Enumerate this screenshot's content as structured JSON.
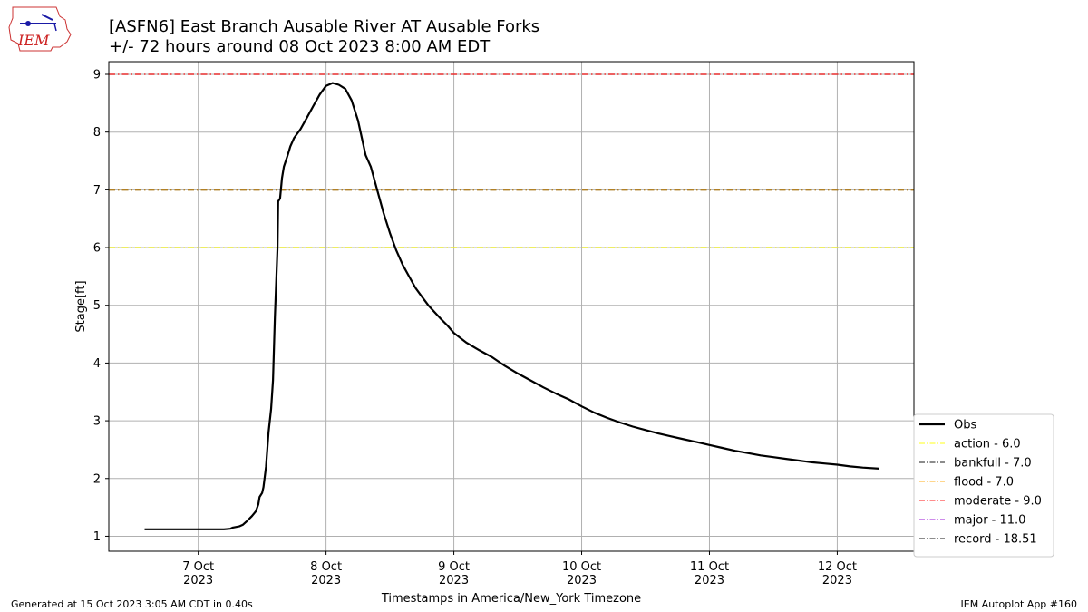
{
  "header": {
    "title": "[ASFN6] East Branch Ausable River  AT Ausable Forks",
    "subtitle": "+/- 72 hours around 08 Oct 2023 8:00 AM EDT",
    "logo_text": "IEM"
  },
  "footer": {
    "left": "Generated at 15 Oct 2023 3:05 AM CDT in 0.40s",
    "right": "IEM Autoplot App #160"
  },
  "chart_data": {
    "type": "line",
    "xlabel": "Timestamps in America/New_York Timezone",
    "ylabel": "Stage[ft]",
    "x_unit": "days since 2023-10-07 00:00 EDT",
    "xlim": [
      -0.7,
      5.6
    ],
    "ylim": [
      0.74,
      9.22
    ],
    "grid": true,
    "legend_position": "lower-right",
    "x_ticks": [
      {
        "value": 0,
        "line1": "7 Oct",
        "line2": "2023"
      },
      {
        "value": 1,
        "line1": "8 Oct",
        "line2": "2023"
      },
      {
        "value": 2,
        "line1": "9 Oct",
        "line2": "2023"
      },
      {
        "value": 3,
        "line1": "10 Oct",
        "line2": "2023"
      },
      {
        "value": 4,
        "line1": "11 Oct",
        "line2": "2023"
      },
      {
        "value": 5,
        "line1": "12 Oct",
        "line2": "2023"
      }
    ],
    "y_ticks": [
      1,
      2,
      3,
      4,
      5,
      6,
      7,
      8,
      9
    ],
    "thresholds": [
      {
        "label": "action - 6.0",
        "value": 6.0,
        "color": "#ffff00"
      },
      {
        "label": "bankfull - 7.0",
        "value": 7.0,
        "color": "#000000"
      },
      {
        "label": "flood - 7.0",
        "value": 7.0,
        "color": "#ffa500"
      },
      {
        "label": "moderate - 9.0",
        "value": 9.0,
        "color": "#ff0000"
      },
      {
        "label": "major - 11.0",
        "value": 11.0,
        "color": "#9400d3"
      },
      {
        "label": "record - 18.51",
        "value": 18.51,
        "color": "#000000"
      }
    ],
    "series": [
      {
        "name": "Obs",
        "color": "#000000",
        "points": [
          [
            -0.42,
            1.12
          ],
          [
            -0.2,
            1.12
          ],
          [
            0.0,
            1.12
          ],
          [
            0.2,
            1.12
          ],
          [
            0.25,
            1.13
          ],
          [
            0.27,
            1.15
          ],
          [
            0.32,
            1.17
          ],
          [
            0.35,
            1.2
          ],
          [
            0.38,
            1.26
          ],
          [
            0.42,
            1.35
          ],
          [
            0.45,
            1.43
          ],
          [
            0.47,
            1.55
          ],
          [
            0.48,
            1.68
          ],
          [
            0.5,
            1.75
          ],
          [
            0.51,
            1.85
          ],
          [
            0.53,
            2.2
          ],
          [
            0.55,
            2.8
          ],
          [
            0.57,
            3.2
          ],
          [
            0.585,
            3.7
          ],
          [
            0.6,
            4.8
          ],
          [
            0.62,
            6.0
          ],
          [
            0.625,
            6.8
          ],
          [
            0.64,
            6.85
          ],
          [
            0.655,
            7.2
          ],
          [
            0.67,
            7.4
          ],
          [
            0.7,
            7.6
          ],
          [
            0.72,
            7.75
          ],
          [
            0.75,
            7.9
          ],
          [
            0.8,
            8.05
          ],
          [
            0.85,
            8.25
          ],
          [
            0.9,
            8.45
          ],
          [
            0.95,
            8.65
          ],
          [
            1.0,
            8.8
          ],
          [
            1.05,
            8.85
          ],
          [
            1.1,
            8.82
          ],
          [
            1.15,
            8.75
          ],
          [
            1.2,
            8.55
          ],
          [
            1.25,
            8.2
          ],
          [
            1.28,
            7.9
          ],
          [
            1.31,
            7.6
          ],
          [
            1.35,
            7.4
          ],
          [
            1.4,
            7.0
          ],
          [
            1.45,
            6.6
          ],
          [
            1.5,
            6.25
          ],
          [
            1.55,
            5.95
          ],
          [
            1.6,
            5.7
          ],
          [
            1.65,
            5.5
          ],
          [
            1.7,
            5.3
          ],
          [
            1.75,
            5.15
          ],
          [
            1.8,
            5.0
          ],
          [
            1.85,
            4.88
          ],
          [
            1.9,
            4.76
          ],
          [
            1.95,
            4.65
          ],
          [
            2.0,
            4.52
          ],
          [
            2.1,
            4.35
          ],
          [
            2.2,
            4.22
          ],
          [
            2.3,
            4.1
          ],
          [
            2.4,
            3.95
          ],
          [
            2.5,
            3.82
          ],
          [
            2.6,
            3.7
          ],
          [
            2.7,
            3.58
          ],
          [
            2.8,
            3.47
          ],
          [
            2.9,
            3.37
          ],
          [
            3.0,
            3.25
          ],
          [
            3.1,
            3.14
          ],
          [
            3.2,
            3.05
          ],
          [
            3.3,
            2.97
          ],
          [
            3.4,
            2.9
          ],
          [
            3.5,
            2.84
          ],
          [
            3.6,
            2.78
          ],
          [
            3.7,
            2.73
          ],
          [
            3.8,
            2.68
          ],
          [
            3.9,
            2.63
          ],
          [
            4.0,
            2.58
          ],
          [
            4.1,
            2.53
          ],
          [
            4.2,
            2.48
          ],
          [
            4.3,
            2.44
          ],
          [
            4.4,
            2.4
          ],
          [
            4.5,
            2.37
          ],
          [
            4.6,
            2.34
          ],
          [
            4.7,
            2.31
          ],
          [
            4.8,
            2.28
          ],
          [
            4.9,
            2.26
          ],
          [
            5.0,
            2.24
          ],
          [
            5.1,
            2.21
          ],
          [
            5.2,
            2.19
          ],
          [
            5.33,
            2.17
          ]
        ]
      }
    ]
  }
}
